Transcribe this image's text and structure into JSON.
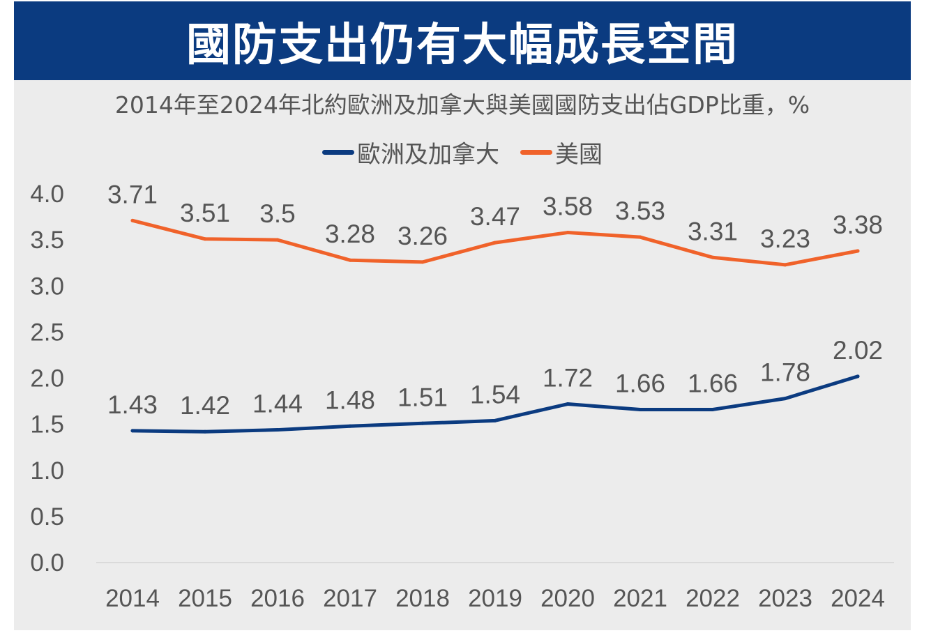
{
  "header": {
    "title": "國防支出仍有大幅成長空間",
    "subtitle": "2014年至2024年北約歐洲及加拿大與美國國防支出佔GDP比重，%"
  },
  "chart_data": {
    "type": "line",
    "title": "國防支出仍有大幅成長空間",
    "subtitle": "2014年至2024年北約歐洲及加拿大與美國國防支出佔GDP比重，%",
    "categories": [
      "2014",
      "2015",
      "2016",
      "2017",
      "2018",
      "2019",
      "2020",
      "2021",
      "2022",
      "2023",
      "2024"
    ],
    "y_ticks": [
      "0.0",
      "0.5",
      "1.0",
      "1.5",
      "2.0",
      "2.5",
      "3.0",
      "3.5",
      "4.0"
    ],
    "ylim": [
      0,
      4.0
    ],
    "grid": false,
    "legend_position": "top",
    "series": [
      {
        "name": "歐洲及加拿大",
        "color": "#0b3b80",
        "values": [
          1.43,
          1.42,
          1.44,
          1.48,
          1.51,
          1.54,
          1.72,
          1.66,
          1.66,
          1.78,
          2.02
        ],
        "labels": [
          "1.43",
          "1.42",
          "1.44",
          "1.48",
          "1.51",
          "1.54",
          "1.72",
          "1.66",
          "1.66",
          "1.78",
          "2.02"
        ]
      },
      {
        "name": "美國",
        "color": "#f0622a",
        "values": [
          3.71,
          3.51,
          3.5,
          3.28,
          3.26,
          3.47,
          3.58,
          3.53,
          3.31,
          3.23,
          3.38
        ],
        "labels": [
          "3.71",
          "3.51",
          "3.5",
          "3.28",
          "3.26",
          "3.47",
          "3.58",
          "3.53",
          "3.31",
          "3.23",
          "3.38"
        ]
      }
    ]
  }
}
